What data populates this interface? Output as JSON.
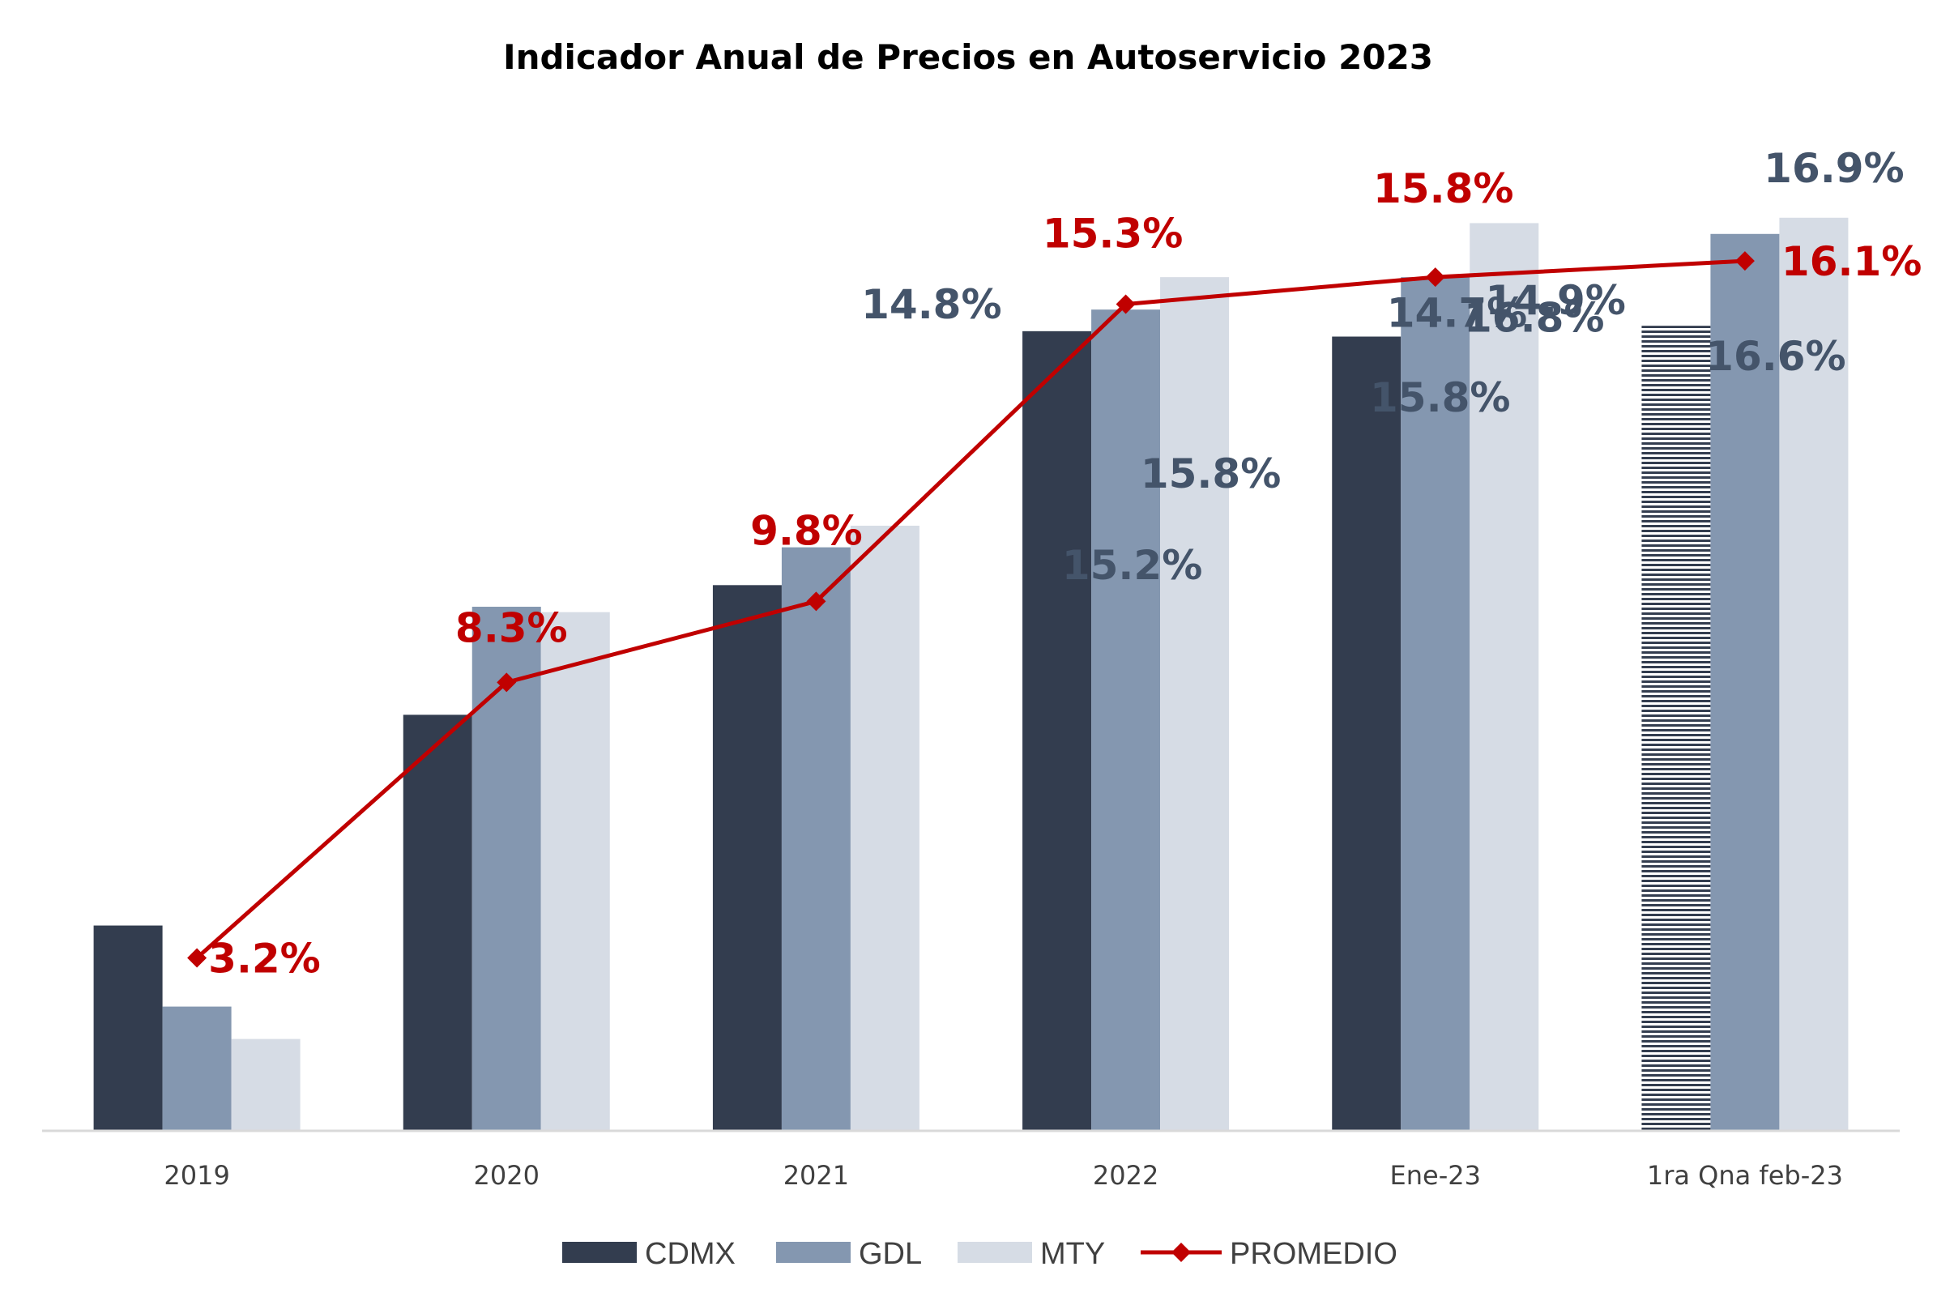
{
  "chart_data": {
    "type": "bar",
    "title": "Indicador Anual de Precios en Autoservicio 2023",
    "categories": [
      "2019",
      "2020",
      "2021",
      "2022",
      "Ene-23",
      "1ra Qna feb-23"
    ],
    "ylim": [
      0,
      20
    ],
    "grid": false,
    "legend_position": "bottom",
    "series": [
      {
        "name": "CDMX",
        "kind": "bar",
        "color": "#333D4F",
        "values": [
          3.8,
          7.7,
          10.1,
          14.8,
          14.7,
          14.9
        ],
        "labels": [
          "",
          "",
          "",
          "14.8%",
          "14.7%",
          "14.9%"
        ],
        "hatched_last": true
      },
      {
        "name": "GDL",
        "kind": "bar",
        "color": "#8497B0",
        "values": [
          2.3,
          9.7,
          10.8,
          15.2,
          15.8,
          16.6
        ],
        "labels": [
          "",
          "",
          "",
          "15.2%",
          "15.8%",
          "16.6%"
        ]
      },
      {
        "name": "MTY",
        "kind": "bar",
        "color": "#D6DCE5",
        "values": [
          1.7,
          9.6,
          11.2,
          15.8,
          16.8,
          16.9
        ],
        "labels": [
          "",
          "",
          "",
          "15.8%",
          "16.8%",
          "16.9%"
        ]
      },
      {
        "name": "PROMEDIO",
        "kind": "line",
        "color": "#C00000",
        "values": [
          3.2,
          8.3,
          9.8,
          15.3,
          15.8,
          16.1
        ],
        "labels": [
          "3.2%",
          "8.3%",
          "9.8%",
          "15.3%",
          "15.8%",
          "16.1%"
        ]
      }
    ]
  }
}
